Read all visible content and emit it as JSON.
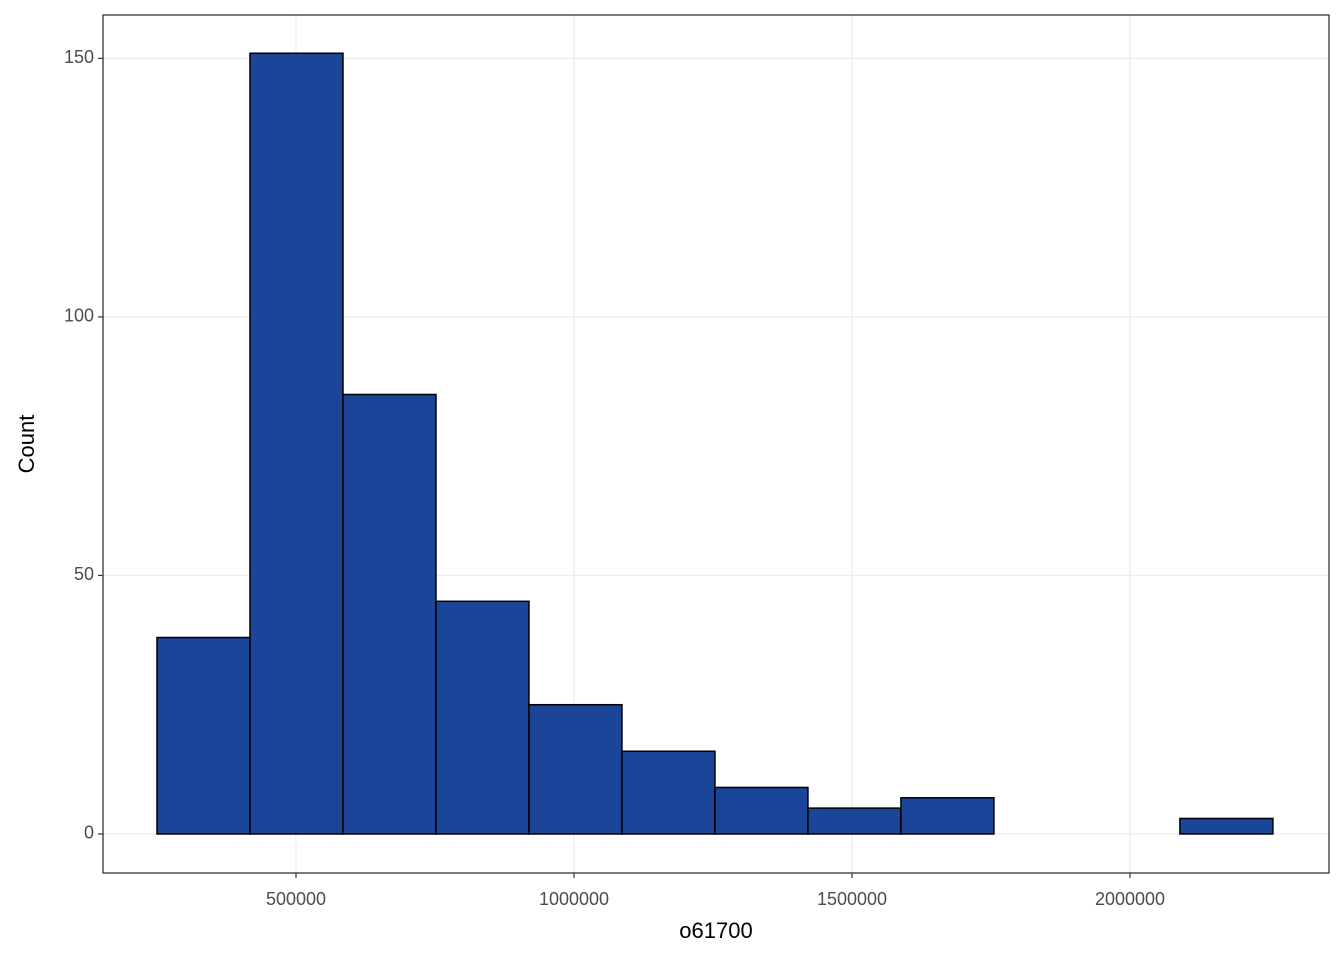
{
  "chart_data": {
    "type": "histogram",
    "x_label": "o61700",
    "y_label": "Count",
    "bins": [
      250000,
      417250,
      584500,
      751750,
      919000,
      1086250,
      1253500,
      1420750,
      1588000,
      1755250,
      1922500,
      2089750,
      2257000
    ],
    "counts": [
      38,
      151,
      85,
      45,
      25,
      16,
      9,
      5,
      7,
      0,
      0,
      3
    ],
    "color": "#1a4599",
    "xlim": [
      152900,
      2357900
    ],
    "ylim": [
      -7.55,
      158.4
    ],
    "xticks": [
      500000,
      1000000,
      1500000,
      2000000
    ],
    "yticks": [
      0,
      50,
      100,
      150
    ],
    "grid": true
  }
}
